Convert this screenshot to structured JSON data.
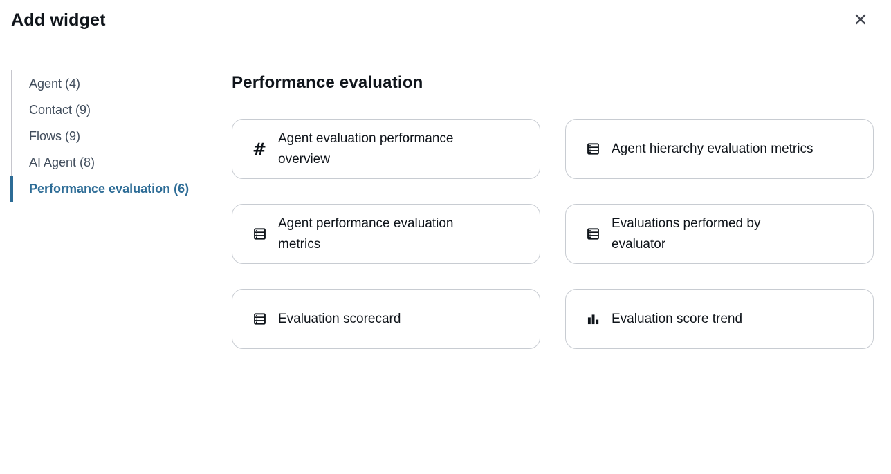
{
  "dialog": {
    "title": "Add widget"
  },
  "sidebar": {
    "items": [
      {
        "label": "Agent (4)",
        "active": false
      },
      {
        "label": "Contact (9)",
        "active": false
      },
      {
        "label": "Flows (9)",
        "active": false
      },
      {
        "label": "AI Agent (8)",
        "active": false
      },
      {
        "label": "Performance evaluation (6)",
        "active": true
      }
    ]
  },
  "main": {
    "heading": "Performance evaluation",
    "widgets": [
      {
        "icon": "number",
        "lines": [
          "Agent evaluation performance",
          "overview"
        ]
      },
      {
        "icon": "table",
        "lines": [
          "Agent hierarchy evaluation metrics"
        ]
      },
      {
        "icon": "table",
        "lines": [
          "Agent performance evaluation",
          "metrics"
        ]
      },
      {
        "icon": "table",
        "lines": [
          "Evaluations performed by",
          "evaluator"
        ]
      },
      {
        "icon": "table",
        "lines": [
          "Evaluation scorecard"
        ]
      },
      {
        "icon": "bar-chart",
        "lines": [
          "Evaluation score trend"
        ]
      }
    ]
  },
  "colors": {
    "accent": "#2d6c96",
    "text": "#0f141a",
    "muted_text": "#414d5c",
    "card_border": "#c8ccd2",
    "sidebar_rule": "#c6c6cd",
    "background": "#ffffff"
  }
}
